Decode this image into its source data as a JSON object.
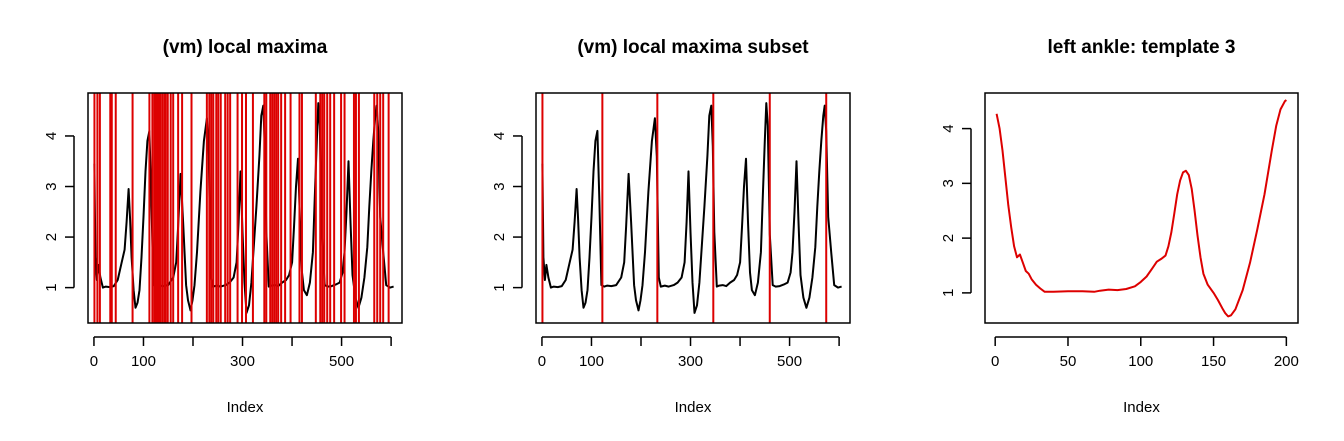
{
  "chart_data": [
    {
      "type": "line",
      "title": "(vm) local maxima",
      "xlabel": "Index",
      "ylabel": "",
      "xlim": [
        -12,
        622
      ],
      "ylim": [
        0.3,
        4.85
      ],
      "xticks": [
        0,
        100,
        200,
        300,
        400,
        500,
        600
      ],
      "xtick_labels": [
        "0",
        "100",
        "",
        "300",
        "",
        "500",
        ""
      ],
      "yticks": [
        1,
        2,
        3,
        4
      ],
      "ytick_labels": [
        "1",
        "2",
        "3",
        "4"
      ],
      "grid": false,
      "line_color": "#000000",
      "vline_color": "#dd0000",
      "series": [
        {
          "x": [
            1,
            3,
            6,
            9,
            13,
            18,
            24,
            32,
            40,
            48,
            56,
            62,
            66,
            70,
            73,
            76,
            80,
            84,
            88,
            92,
            96,
            100,
            104,
            108,
            112,
            116,
            120,
            126,
            132,
            140,
            150,
            160,
            166,
            170,
            175,
            180,
            186,
            190,
            195,
            199,
            203,
            208,
            215,
            222,
            228,
            232,
            236,
            240,
            248,
            256,
            266,
            274,
            282,
            288,
            292,
            296,
            300,
            304,
            308,
            313,
            318,
            322,
            328,
            334,
            338,
            342,
            345,
            348,
            353,
            358,
            365,
            372,
            380,
            388,
            394,
            400,
            404,
            408,
            412,
            416,
            420,
            424,
            430,
            436,
            442,
            446,
            450,
            453,
            456,
            460,
            466,
            472,
            480,
            488,
            496,
            502,
            506,
            510,
            514,
            518,
            522,
            528,
            534,
            540,
            546,
            552,
            556,
            560,
            564,
            568,
            571,
            574,
            578,
            584,
            590,
            598,
            605
          ],
          "y": [
            3.45,
            1.6,
            1.15,
            1.45,
            1.2,
            1.0,
            1.02,
            1.01,
            1.03,
            1.15,
            1.5,
            1.75,
            2.3,
            2.95,
            2.35,
            1.6,
            0.95,
            0.6,
            0.7,
            0.95,
            1.6,
            2.4,
            3.3,
            3.9,
            4.1,
            2.7,
            1.05,
            1.02,
            1.04,
            1.03,
            1.05,
            1.2,
            1.5,
            2.2,
            3.25,
            2.3,
            1.05,
            0.75,
            0.55,
            0.75,
            1.05,
            1.7,
            2.9,
            3.9,
            4.35,
            3.6,
            1.2,
            1.02,
            1.04,
            1.02,
            1.05,
            1.1,
            1.2,
            1.5,
            2.3,
            3.3,
            2.1,
            1.1,
            0.5,
            0.65,
            1.1,
            1.7,
            2.6,
            3.6,
            4.4,
            4.6,
            3.8,
            2.1,
            1.02,
            1.04,
            1.05,
            1.03,
            1.1,
            1.15,
            1.25,
            1.5,
            2.2,
            3.0,
            3.55,
            2.3,
            1.3,
            0.95,
            0.85,
            1.1,
            1.7,
            2.8,
            3.9,
            4.65,
            4.2,
            2.05,
            1.05,
            1.02,
            1.03,
            1.06,
            1.1,
            1.3,
            1.7,
            2.5,
            3.5,
            2.3,
            1.25,
            0.8,
            0.6,
            0.8,
            1.2,
            1.8,
            2.6,
            3.3,
            3.9,
            4.4,
            4.6,
            4.1,
            2.4,
            1.7,
            1.05,
            1.0,
            1.02
          ]
        }
      ],
      "vlines": [
        1,
        7,
        12,
        33,
        36,
        44,
        78,
        112,
        118,
        122,
        125,
        128,
        131,
        134,
        138,
        142,
        145,
        149,
        155,
        160,
        170,
        178,
        197,
        228,
        233,
        237,
        241,
        247,
        251,
        256,
        265,
        270,
        275,
        290,
        299,
        307,
        321,
        344,
        348,
        356,
        360,
        364,
        368,
        372,
        378,
        386,
        397,
        415,
        420,
        448,
        457,
        461,
        465,
        471,
        477,
        485,
        499,
        506,
        525,
        529,
        535,
        566,
        572,
        578,
        584,
        595
      ]
    },
    {
      "type": "line",
      "title": "(vm) local maxima subset",
      "xlabel": "Index",
      "ylabel": "",
      "xlim": [
        -12,
        622
      ],
      "ylim": [
        0.3,
        4.85
      ],
      "xticks": [
        0,
        100,
        200,
        300,
        400,
        500,
        600
      ],
      "xtick_labels": [
        "0",
        "100",
        "",
        "300",
        "",
        "500",
        ""
      ],
      "yticks": [
        1,
        2,
        3,
        4
      ],
      "ytick_labels": [
        "1",
        "2",
        "3",
        "4"
      ],
      "grid": false,
      "line_color": "#000000",
      "vline_color": "#dd0000",
      "series": [
        {
          "x": [
            1,
            3,
            6,
            9,
            13,
            18,
            24,
            32,
            40,
            48,
            56,
            62,
            66,
            70,
            73,
            76,
            80,
            84,
            88,
            92,
            96,
            100,
            104,
            108,
            112,
            116,
            120,
            126,
            132,
            140,
            150,
            160,
            166,
            170,
            175,
            180,
            186,
            190,
            195,
            199,
            203,
            208,
            215,
            222,
            228,
            232,
            236,
            240,
            248,
            256,
            266,
            274,
            282,
            288,
            292,
            296,
            300,
            304,
            308,
            313,
            318,
            322,
            328,
            334,
            338,
            342,
            345,
            348,
            353,
            358,
            365,
            372,
            380,
            388,
            394,
            400,
            404,
            408,
            412,
            416,
            420,
            424,
            430,
            436,
            442,
            446,
            450,
            453,
            456,
            460,
            466,
            472,
            480,
            488,
            496,
            502,
            506,
            510,
            514,
            518,
            522,
            528,
            534,
            540,
            546,
            552,
            556,
            560,
            564,
            568,
            571,
            574,
            578,
            584,
            590,
            598,
            605
          ],
          "y": [
            3.45,
            1.6,
            1.15,
            1.45,
            1.2,
            1.0,
            1.02,
            1.01,
            1.03,
            1.15,
            1.5,
            1.75,
            2.3,
            2.95,
            2.35,
            1.6,
            0.95,
            0.6,
            0.7,
            0.95,
            1.6,
            2.4,
            3.3,
            3.9,
            4.1,
            2.7,
            1.05,
            1.02,
            1.04,
            1.03,
            1.05,
            1.2,
            1.5,
            2.2,
            3.25,
            2.3,
            1.05,
            0.75,
            0.55,
            0.75,
            1.05,
            1.7,
            2.9,
            3.9,
            4.35,
            3.6,
            1.2,
            1.02,
            1.04,
            1.02,
            1.05,
            1.1,
            1.2,
            1.5,
            2.3,
            3.3,
            2.1,
            1.1,
            0.5,
            0.65,
            1.1,
            1.7,
            2.6,
            3.6,
            4.4,
            4.6,
            3.8,
            2.1,
            1.02,
            1.04,
            1.05,
            1.03,
            1.1,
            1.15,
            1.25,
            1.5,
            2.2,
            3.0,
            3.55,
            2.3,
            1.3,
            0.95,
            0.85,
            1.1,
            1.7,
            2.8,
            3.9,
            4.65,
            4.2,
            2.05,
            1.05,
            1.02,
            1.03,
            1.06,
            1.1,
            1.3,
            1.7,
            2.5,
            3.5,
            2.3,
            1.25,
            0.8,
            0.6,
            0.8,
            1.2,
            1.8,
            2.6,
            3.3,
            3.9,
            4.4,
            4.6,
            4.1,
            2.4,
            1.7,
            1.05,
            1.0,
            1.02
          ]
        }
      ],
      "vlines": [
        1,
        122,
        233,
        346,
        460,
        574
      ]
    },
    {
      "type": "line",
      "title": "left ankle: template 3",
      "xlabel": "Index",
      "ylabel": "",
      "xlim": [
        -7,
        208
      ],
      "ylim": [
        0.45,
        4.65
      ],
      "xticks": [
        0,
        50,
        100,
        150,
        200
      ],
      "xtick_labels": [
        "0",
        "50",
        "100",
        "150",
        "200"
      ],
      "yticks": [
        1,
        2,
        3,
        4
      ],
      "ytick_labels": [
        "1",
        "2",
        "3",
        "4"
      ],
      "grid": false,
      "line_color": "#dd0000",
      "series": [
        {
          "x": [
            1,
            3,
            5,
            7,
            9,
            11,
            13,
            15,
            17,
            19,
            21,
            23,
            25,
            28,
            31,
            34,
            40,
            50,
            60,
            68,
            72,
            78,
            84,
            90,
            96,
            100,
            104,
            108,
            111,
            114,
            117,
            119,
            121,
            123,
            125,
            127,
            129,
            131,
            133,
            135,
            137,
            139,
            141,
            143,
            146,
            150,
            153,
            156,
            158,
            160,
            162,
            165,
            170,
            175,
            180,
            185,
            190,
            193,
            196,
            199,
            200
          ],
          "y": [
            4.27,
            4.0,
            3.6,
            3.1,
            2.6,
            2.2,
            1.85,
            1.65,
            1.7,
            1.55,
            1.4,
            1.35,
            1.25,
            1.15,
            1.08,
            1.02,
            1.02,
            1.03,
            1.03,
            1.02,
            1.04,
            1.06,
            1.05,
            1.07,
            1.12,
            1.2,
            1.3,
            1.45,
            1.57,
            1.62,
            1.68,
            1.85,
            2.1,
            2.45,
            2.8,
            3.05,
            3.2,
            3.23,
            3.15,
            2.9,
            2.5,
            2.05,
            1.65,
            1.35,
            1.15,
            1.0,
            0.87,
            0.72,
            0.63,
            0.57,
            0.59,
            0.7,
            1.05,
            1.55,
            2.15,
            2.8,
            3.6,
            4.05,
            4.35,
            4.5,
            4.52
          ]
        }
      ],
      "vlines": []
    }
  ]
}
